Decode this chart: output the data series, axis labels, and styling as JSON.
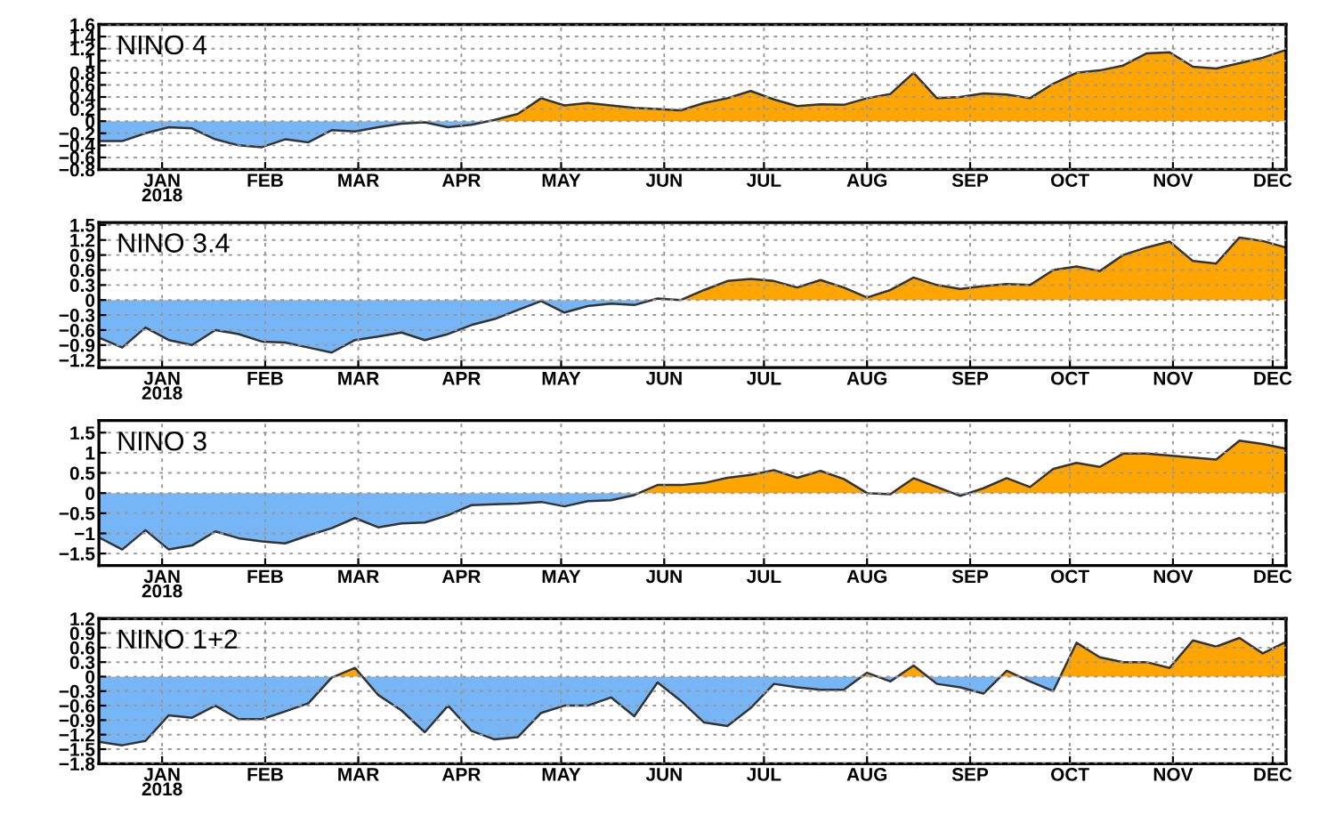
{
  "chart_data": [
    {
      "type": "area",
      "title": "NINO 4",
      "x": [
        "2017-12-27",
        "2018-01-03",
        "2018-01-10",
        "2018-01-17",
        "2018-01-24",
        "2018-01-31",
        "2018-02-07",
        "2018-02-14",
        "2018-02-21",
        "2018-02-28",
        "2018-03-07",
        "2018-03-14",
        "2018-03-21",
        "2018-03-28",
        "2018-04-04",
        "2018-04-11",
        "2018-04-18",
        "2018-04-25",
        "2018-05-02",
        "2018-05-09",
        "2018-05-16",
        "2018-05-23",
        "2018-05-30",
        "2018-06-06",
        "2018-06-13",
        "2018-06-20",
        "2018-06-27",
        "2018-07-04",
        "2018-07-11",
        "2018-07-18",
        "2018-07-25",
        "2018-08-01",
        "2018-08-08",
        "2018-08-15",
        "2018-08-22",
        "2018-08-29",
        "2018-09-05",
        "2018-09-12",
        "2018-09-19",
        "2018-09-26",
        "2018-10-03",
        "2018-10-10",
        "2018-10-17",
        "2018-10-24",
        "2018-10-31",
        "2018-11-07",
        "2018-11-14",
        "2018-11-21",
        "2018-11-28",
        "2018-12-05",
        "2018-12-12",
        "2018-12-19"
      ],
      "series": [
        {
          "values": [
            -0.33,
            -0.33,
            -0.2,
            -0.1,
            -0.12,
            -0.3,
            -0.4,
            -0.43,
            -0.3,
            -0.35,
            -0.15,
            -0.17,
            -0.1,
            -0.04,
            -0.02,
            -0.1,
            -0.06,
            0.02,
            0.12,
            0.38,
            0.26,
            0.3,
            0.26,
            0.22,
            0.2,
            0.18,
            0.3,
            0.38,
            0.5,
            0.36,
            0.25,
            0.28,
            0.27,
            0.38,
            0.45,
            0.8,
            0.38,
            0.4,
            0.46,
            0.44,
            0.38,
            0.62,
            0.8,
            0.84,
            0.92,
            1.12,
            1.14,
            0.9,
            0.87,
            0.96,
            1.05,
            1.18
          ],
          "colors": [
            "#77b6f6",
            "#77b6f6",
            "#77b6f6",
            "#77b6f6",
            "#77b6f6",
            "#77b6f6",
            "#77b6f6",
            "#77b6f6",
            "#77b6f6",
            "#77b6f6",
            "#77b6f6",
            "#77b6f6",
            "#77b6f6",
            "#77b6f6",
            "#77b6f6",
            "#77b6f6",
            "#77b6f6",
            "#ffa500",
            "#ffa500",
            "#ffa500",
            "#ffa500",
            "#ffa500",
            "#ffa500",
            "#ffa500",
            "#ffa500",
            "#ffa500",
            "#ffa500",
            "#ffa500",
            "#ffa500",
            "#ffa500",
            "#ffa500",
            "#ffa500",
            "#ffa500",
            "#ffa500",
            "#ffa500",
            "#ffa500",
            "#ffa500",
            "#ffa500",
            "#ffa500",
            "#ffa500",
            "#ffa500",
            "#ffa500",
            "#ffa500",
            "#ffa500",
            "#ffa500",
            "#ffa500",
            "#ffa500",
            "#ffa500",
            "#ffa500",
            "#ffa500",
            "#ffa500",
            "#ffa500"
          ]
        }
      ],
      "xlim": [
        "2017-12-27",
        "2018-12-19"
      ],
      "ylim": [
        -0.8,
        1.6
      ],
      "yticks": [
        -0.8,
        -0.6,
        -0.4,
        -0.2,
        0,
        0.2,
        0.4,
        0.6,
        0.8,
        1,
        1.2,
        1.4,
        1.6
      ],
      "xticks": [
        {
          "value": "2018-01-15",
          "label": "JAN\n2018"
        },
        {
          "value": "2018-02-15",
          "label": "FEB"
        },
        {
          "value": "2018-03-15",
          "label": "MAR"
        },
        {
          "value": "2018-04-15",
          "label": "APR"
        },
        {
          "value": "2018-05-15",
          "label": "MAY"
        },
        {
          "value": "2018-06-15",
          "label": "JUN"
        },
        {
          "value": "2018-07-15",
          "label": "JUL"
        },
        {
          "value": "2018-08-15",
          "label": "AUG"
        },
        {
          "value": "2018-09-15",
          "label": "SEP"
        },
        {
          "value": "2018-10-15",
          "label": "OCT"
        },
        {
          "value": "2018-11-15",
          "label": "NOV"
        },
        {
          "value": "2018-12-15",
          "label": "DEC"
        }
      ],
      "grid": true,
      "legend": false
    },
    {
      "type": "area",
      "title": "NINO 3.4",
      "x": [
        "2017-12-27",
        "2018-01-03",
        "2018-01-10",
        "2018-01-17",
        "2018-01-24",
        "2018-01-31",
        "2018-02-07",
        "2018-02-14",
        "2018-02-21",
        "2018-02-28",
        "2018-03-07",
        "2018-03-14",
        "2018-03-21",
        "2018-03-28",
        "2018-04-04",
        "2018-04-11",
        "2018-04-18",
        "2018-04-25",
        "2018-05-02",
        "2018-05-09",
        "2018-05-16",
        "2018-05-23",
        "2018-05-30",
        "2018-06-06",
        "2018-06-13",
        "2018-06-20",
        "2018-06-27",
        "2018-07-04",
        "2018-07-11",
        "2018-07-18",
        "2018-07-25",
        "2018-08-01",
        "2018-08-08",
        "2018-08-15",
        "2018-08-22",
        "2018-08-29",
        "2018-09-05",
        "2018-09-12",
        "2018-09-19",
        "2018-09-26",
        "2018-10-03",
        "2018-10-10",
        "2018-10-17",
        "2018-10-24",
        "2018-10-31",
        "2018-11-07",
        "2018-11-14",
        "2018-11-21",
        "2018-11-28",
        "2018-12-05",
        "2018-12-12",
        "2018-12-19"
      ],
      "series": [
        {
          "values": [
            -0.75,
            -0.95,
            -0.55,
            -0.8,
            -0.9,
            -0.6,
            -0.68,
            -0.83,
            -0.85,
            -0.95,
            -1.05,
            -0.8,
            -0.73,
            -0.65,
            -0.8,
            -0.68,
            -0.5,
            -0.38,
            -0.2,
            -0.02,
            -0.25,
            -0.12,
            -0.07,
            -0.1,
            0.03,
            0.0,
            0.2,
            0.38,
            0.42,
            0.38,
            0.25,
            0.4,
            0.25,
            0.05,
            0.2,
            0.45,
            0.3,
            0.22,
            0.28,
            0.32,
            0.3,
            0.6,
            0.67,
            0.58,
            0.9,
            1.05,
            1.17,
            0.78,
            0.73,
            1.25,
            1.18,
            1.05
          ],
          "colors": [
            "#77b6f6",
            "#77b6f6",
            "#77b6f6",
            "#77b6f6",
            "#77b6f6",
            "#77b6f6",
            "#77b6f6",
            "#77b6f6",
            "#77b6f6",
            "#77b6f6",
            "#77b6f6",
            "#77b6f6",
            "#77b6f6",
            "#77b6f6",
            "#77b6f6",
            "#77b6f6",
            "#77b6f6",
            "#77b6f6",
            "#77b6f6",
            "#77b6f6",
            "#77b6f6",
            "#77b6f6",
            "#77b6f6",
            "#77b6f6",
            "#ffa500",
            "#ffa500",
            "#ffa500",
            "#ffa500",
            "#ffa500",
            "#ffa500",
            "#ffa500",
            "#ffa500",
            "#ffa500",
            "#ffa500",
            "#ffa500",
            "#ffa500",
            "#ffa500",
            "#ffa500",
            "#ffa500",
            "#ffa500",
            "#ffa500",
            "#ffa500",
            "#ffa500",
            "#ffa500",
            "#ffa500",
            "#ffa500",
            "#ffa500",
            "#ffa500",
            "#ffa500",
            "#ffa500",
            "#ffa500",
            "#ffa500"
          ]
        }
      ],
      "xlim": [
        "2017-12-27",
        "2018-12-19"
      ],
      "ylim": [
        -1.35,
        1.55
      ],
      "yticks": [
        -1.2,
        -0.9,
        -0.6,
        -0.3,
        0,
        0.3,
        0.6,
        0.9,
        1.2,
        1.5
      ],
      "xticks": [
        {
          "value": "2018-01-15",
          "label": "JAN\n2018"
        },
        {
          "value": "2018-02-15",
          "label": "FEB"
        },
        {
          "value": "2018-03-15",
          "label": "MAR"
        },
        {
          "value": "2018-04-15",
          "label": "APR"
        },
        {
          "value": "2018-05-15",
          "label": "MAY"
        },
        {
          "value": "2018-06-15",
          "label": "JUN"
        },
        {
          "value": "2018-07-15",
          "label": "JUL"
        },
        {
          "value": "2018-08-15",
          "label": "AUG"
        },
        {
          "value": "2018-09-15",
          "label": "SEP"
        },
        {
          "value": "2018-10-15",
          "label": "OCT"
        },
        {
          "value": "2018-11-15",
          "label": "NOV"
        },
        {
          "value": "2018-12-15",
          "label": "DEC"
        }
      ],
      "grid": true,
      "legend": false
    },
    {
      "type": "area",
      "title": "NINO 3",
      "x": [
        "2017-12-27",
        "2018-01-03",
        "2018-01-10",
        "2018-01-17",
        "2018-01-24",
        "2018-01-31",
        "2018-02-07",
        "2018-02-14",
        "2018-02-21",
        "2018-02-28",
        "2018-03-07",
        "2018-03-14",
        "2018-03-21",
        "2018-03-28",
        "2018-04-04",
        "2018-04-11",
        "2018-04-18",
        "2018-04-25",
        "2018-05-02",
        "2018-05-09",
        "2018-05-16",
        "2018-05-23",
        "2018-05-30",
        "2018-06-06",
        "2018-06-13",
        "2018-06-20",
        "2018-06-27",
        "2018-07-04",
        "2018-07-11",
        "2018-07-18",
        "2018-07-25",
        "2018-08-01",
        "2018-08-08",
        "2018-08-15",
        "2018-08-22",
        "2018-08-29",
        "2018-09-05",
        "2018-09-12",
        "2018-09-19",
        "2018-09-26",
        "2018-10-03",
        "2018-10-10",
        "2018-10-17",
        "2018-10-24",
        "2018-10-31",
        "2018-11-07",
        "2018-11-14",
        "2018-11-21",
        "2018-11-28",
        "2018-12-05",
        "2018-12-12",
        "2018-12-19"
      ],
      "series": [
        {
          "values": [
            -1.1,
            -1.4,
            -0.92,
            -1.4,
            -1.3,
            -0.95,
            -1.12,
            -1.2,
            -1.25,
            -1.05,
            -0.87,
            -0.62,
            -0.85,
            -0.75,
            -0.73,
            -0.55,
            -0.3,
            -0.28,
            -0.26,
            -0.22,
            -0.33,
            -0.2,
            -0.18,
            -0.05,
            0.2,
            0.2,
            0.25,
            0.38,
            0.45,
            0.57,
            0.38,
            0.55,
            0.35,
            0.0,
            -0.03,
            0.37,
            0.15,
            -0.07,
            0.12,
            0.37,
            0.15,
            0.6,
            0.75,
            0.65,
            0.98,
            0.98,
            0.93,
            0.88,
            0.83,
            1.3,
            1.22,
            1.1
          ],
          "colors": [
            "#77b6f6",
            "#77b6f6",
            "#77b6f6",
            "#77b6f6",
            "#77b6f6",
            "#77b6f6",
            "#77b6f6",
            "#77b6f6",
            "#77b6f6",
            "#77b6f6",
            "#77b6f6",
            "#77b6f6",
            "#77b6f6",
            "#77b6f6",
            "#77b6f6",
            "#77b6f6",
            "#77b6f6",
            "#77b6f6",
            "#77b6f6",
            "#77b6f6",
            "#77b6f6",
            "#77b6f6",
            "#77b6f6",
            "#77b6f6",
            "#ffa500",
            "#ffa500",
            "#ffa500",
            "#ffa500",
            "#ffa500",
            "#ffa500",
            "#ffa500",
            "#ffa500",
            "#ffa500",
            "#ffa500",
            "#ffa500",
            "#ffa500",
            "#ffa500",
            "#ffa500",
            "#ffa500",
            "#ffa500",
            "#ffa500",
            "#ffa500",
            "#ffa500",
            "#ffa500",
            "#ffa500",
            "#ffa500",
            "#ffa500",
            "#ffa500",
            "#ffa500",
            "#ffa500",
            "#ffa500",
            "#ffa500"
          ]
        }
      ],
      "xlim": [
        "2017-12-27",
        "2018-12-19"
      ],
      "ylim": [
        -1.8,
        1.8
      ],
      "yticks": [
        -1.5,
        -1,
        -0.5,
        0,
        0.5,
        1,
        1.5
      ],
      "xticks": [
        {
          "value": "2018-01-15",
          "label": "JAN\n2018"
        },
        {
          "value": "2018-02-15",
          "label": "FEB"
        },
        {
          "value": "2018-03-15",
          "label": "MAR"
        },
        {
          "value": "2018-04-15",
          "label": "APR"
        },
        {
          "value": "2018-05-15",
          "label": "MAY"
        },
        {
          "value": "2018-06-15",
          "label": "JUN"
        },
        {
          "value": "2018-07-15",
          "label": "JUL"
        },
        {
          "value": "2018-08-15",
          "label": "AUG"
        },
        {
          "value": "2018-09-15",
          "label": "SEP"
        },
        {
          "value": "2018-10-15",
          "label": "OCT"
        },
        {
          "value": "2018-11-15",
          "label": "NOV"
        },
        {
          "value": "2018-12-15",
          "label": "DEC"
        }
      ],
      "grid": true,
      "legend": false
    },
    {
      "type": "area",
      "title": "NINO 1+2",
      "x": [
        "2017-12-27",
        "2018-01-03",
        "2018-01-10",
        "2018-01-17",
        "2018-01-24",
        "2018-01-31",
        "2018-02-07",
        "2018-02-14",
        "2018-02-21",
        "2018-02-28",
        "2018-03-07",
        "2018-03-14",
        "2018-03-21",
        "2018-03-28",
        "2018-04-04",
        "2018-04-11",
        "2018-04-18",
        "2018-04-25",
        "2018-05-02",
        "2018-05-09",
        "2018-05-16",
        "2018-05-23",
        "2018-05-30",
        "2018-06-06",
        "2018-06-13",
        "2018-06-20",
        "2018-06-27",
        "2018-07-04",
        "2018-07-11",
        "2018-07-18",
        "2018-07-25",
        "2018-08-01",
        "2018-08-08",
        "2018-08-15",
        "2018-08-22",
        "2018-08-29",
        "2018-09-05",
        "2018-09-12",
        "2018-09-19",
        "2018-09-26",
        "2018-10-03",
        "2018-10-10",
        "2018-10-17",
        "2018-10-24",
        "2018-10-31",
        "2018-11-07",
        "2018-11-14",
        "2018-11-21",
        "2018-11-28",
        "2018-12-05",
        "2018-12-12",
        "2018-12-19"
      ],
      "series": [
        {
          "values": [
            -1.35,
            -1.42,
            -1.33,
            -0.8,
            -0.85,
            -0.6,
            -0.88,
            -0.88,
            -0.72,
            -0.55,
            -0.02,
            0.18,
            -0.38,
            -0.7,
            -1.15,
            -0.6,
            -1.12,
            -1.3,
            -1.25,
            -0.75,
            -0.6,
            -0.6,
            -0.43,
            -0.82,
            -0.12,
            -0.5,
            -0.95,
            -1.02,
            -0.65,
            -0.15,
            -0.22,
            -0.27,
            -0.27,
            0.08,
            -0.1,
            0.23,
            -0.15,
            -0.22,
            -0.35,
            0.12,
            -0.1,
            -0.3,
            0.7,
            0.4,
            0.3,
            0.3,
            0.18,
            0.75,
            0.62,
            0.8,
            0.48,
            0.72
          ],
          "colors": [
            "#77b6f6",
            "#77b6f6",
            "#77b6f6",
            "#77b6f6",
            "#77b6f6",
            "#77b6f6",
            "#77b6f6",
            "#77b6f6",
            "#77b6f6",
            "#77b6f6",
            "#77b6f6",
            "#ffa500",
            "#77b6f6",
            "#77b6f6",
            "#77b6f6",
            "#77b6f6",
            "#77b6f6",
            "#77b6f6",
            "#77b6f6",
            "#77b6f6",
            "#77b6f6",
            "#77b6f6",
            "#77b6f6",
            "#77b6f6",
            "#77b6f6",
            "#77b6f6",
            "#77b6f6",
            "#77b6f6",
            "#77b6f6",
            "#77b6f6",
            "#77b6f6",
            "#77b6f6",
            "#77b6f6",
            "#ffa500",
            "#77b6f6",
            "#ffa500",
            "#77b6f6",
            "#77b6f6",
            "#77b6f6",
            "#ffa500",
            "#77b6f6",
            "#77b6f6",
            "#ffa500",
            "#ffa500",
            "#ffa500",
            "#ffa500",
            "#ffa500",
            "#ffa500",
            "#ffa500",
            "#ffa500",
            "#ffa500",
            "#ffa500"
          ]
        }
      ],
      "xlim": [
        "2017-12-27",
        "2018-12-19"
      ],
      "ylim": [
        -1.8,
        1.2
      ],
      "yticks": [
        -1.8,
        -1.5,
        -1.2,
        -0.9,
        -0.6,
        -0.3,
        0,
        0.3,
        0.6,
        0.9,
        1.2
      ],
      "xticks": [
        {
          "value": "2018-01-15",
          "label": "JAN\n2018"
        },
        {
          "value": "2018-02-15",
          "label": "FEB"
        },
        {
          "value": "2018-03-15",
          "label": "MAR"
        },
        {
          "value": "2018-04-15",
          "label": "APR"
        },
        {
          "value": "2018-05-15",
          "label": "MAY"
        },
        {
          "value": "2018-06-15",
          "label": "JUN"
        },
        {
          "value": "2018-07-15",
          "label": "JUL"
        },
        {
          "value": "2018-08-15",
          "label": "AUG"
        },
        {
          "value": "2018-09-15",
          "label": "SEP"
        },
        {
          "value": "2018-10-15",
          "label": "OCT"
        },
        {
          "value": "2018-11-15",
          "label": "NOV"
        },
        {
          "value": "2018-12-15",
          "label": "DEC"
        }
      ],
      "grid": true,
      "legend": false
    }
  ]
}
